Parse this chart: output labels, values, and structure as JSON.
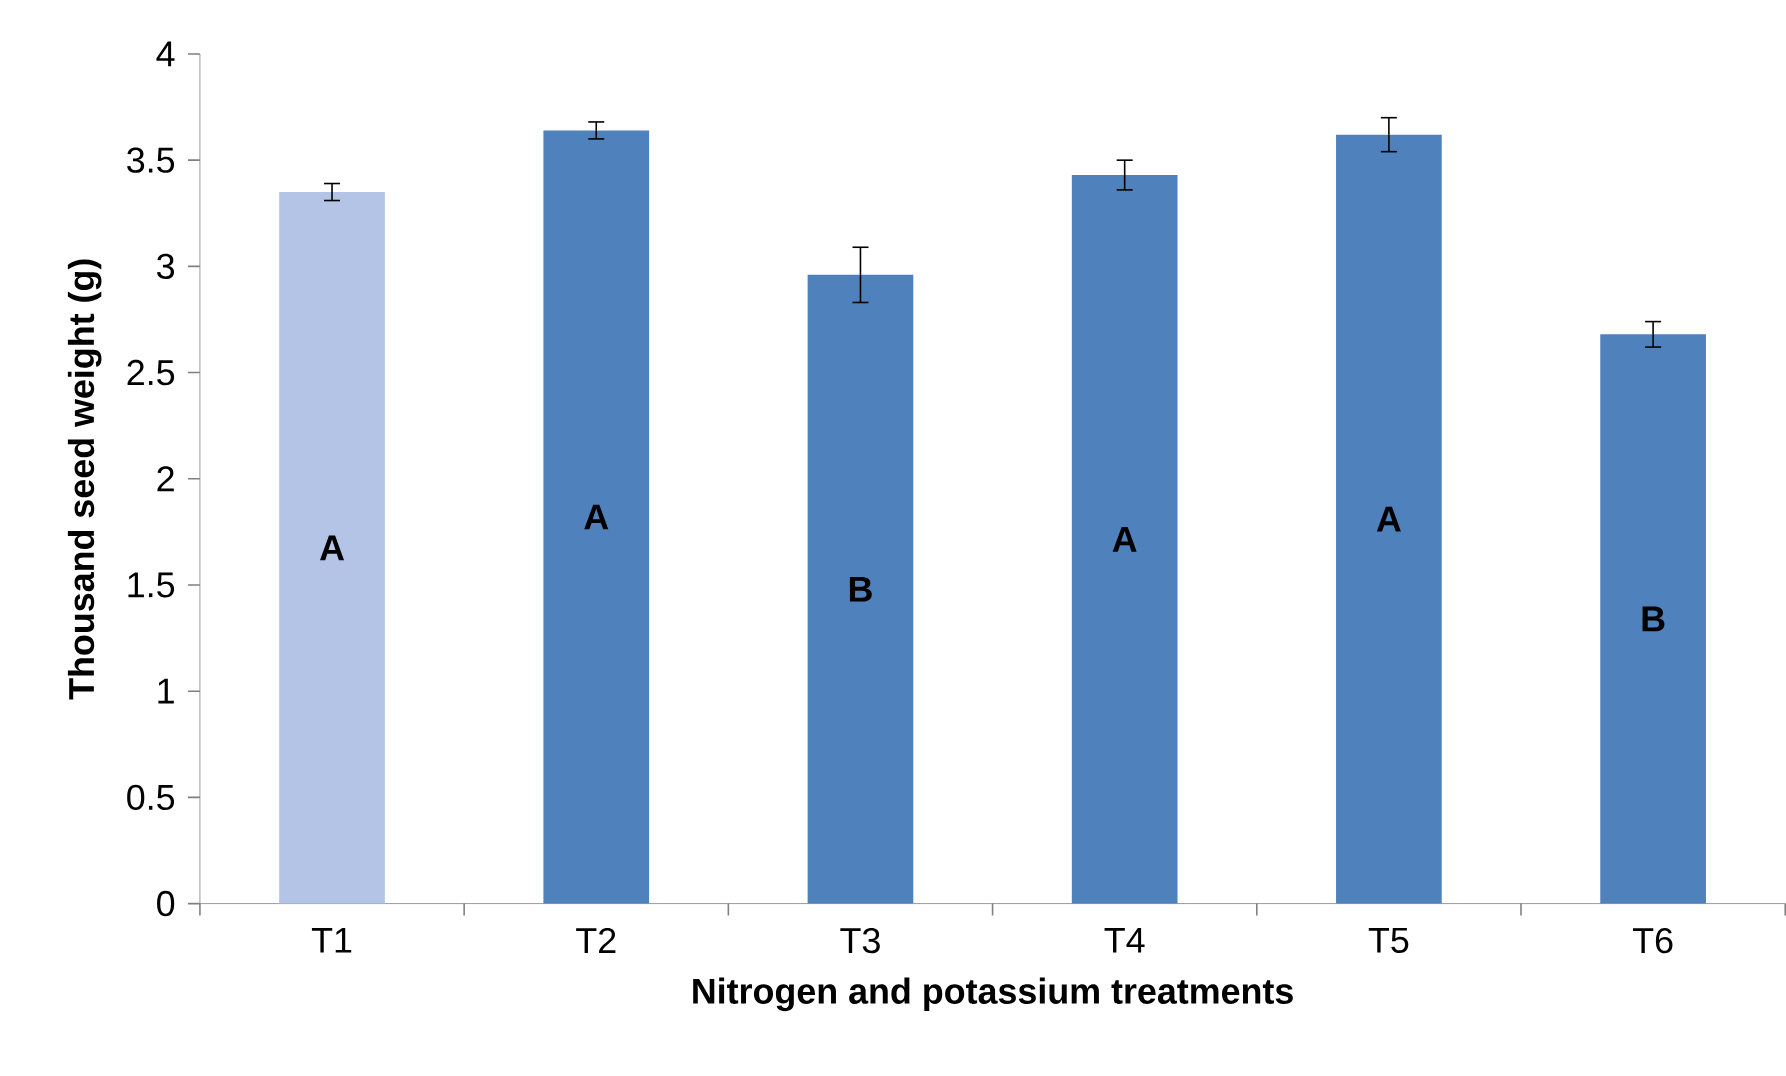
{
  "chart_data": {
    "type": "bar",
    "xlabel": "Nitrogen and potassium treatments",
    "ylabel": "Thousand seed weight (g)",
    "categories": [
      "T1",
      "T2",
      "T3",
      "T4",
      "T5",
      "T6"
    ],
    "values": [
      3.35,
      3.64,
      2.96,
      3.43,
      3.62,
      2.68
    ],
    "errors": [
      0.04,
      0.04,
      0.13,
      0.07,
      0.08,
      0.06
    ],
    "colors": [
      "#b3c4e6",
      "#4f81bd",
      "#4f81bd",
      "#4f81bd",
      "#4f81bd",
      "#4f81bd"
    ],
    "ylim": [
      0,
      4
    ],
    "yticks": [
      0,
      0.5,
      1,
      1.5,
      2,
      2.5,
      3,
      3.5,
      4
    ],
    "annotations": [
      "A",
      "A",
      "B",
      "A",
      "A",
      "B"
    ]
  }
}
